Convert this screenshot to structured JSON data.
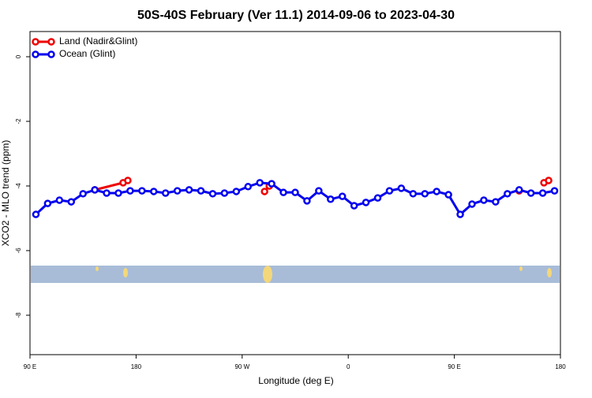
{
  "chart_data": {
    "type": "line",
    "title": "50S-40S February (Ver 11.1)   2014-09-06 to 2023-04-30",
    "xlabel": "Longitude (deg E)",
    "ylabel": "XCO2 - MLO trend (ppm)",
    "xlim": [
      90,
      540
    ],
    "ylim": [
      -9.22,
      0.78
    ],
    "xticks": [
      {
        "value": 90,
        "label": "90 E"
      },
      180,
      {
        "value": 270,
        "label": "90 W"
      },
      {
        "value": 360,
        "label": "0"
      },
      {
        "value": 450,
        "label": "90 E"
      },
      {
        "value": 540,
        "label": "180"
      }
    ],
    "yticks": [
      0,
      -2,
      -4,
      -6,
      -8
    ],
    "legend": "top-left",
    "series": [
      {
        "name": "Land (Nadir&Glint)",
        "color": "#ee0000",
        "x": [
          145,
          169,
          173,
          180,
          289,
          293,
          300,
          505,
          510,
          526,
          530
        ],
        "values": [
          -4.12,
          -3.9,
          -3.83,
          null,
          -4.17,
          -4.0,
          null,
          -4.15,
          null,
          -3.9,
          -3.83
        ]
      },
      {
        "name": "Ocean (Glint)",
        "color": "#0000ee",
        "x": [
          95,
          105,
          115,
          125,
          135,
          145,
          155,
          165,
          175,
          185,
          195,
          205,
          215,
          225,
          235,
          245,
          255,
          265,
          275,
          285,
          295,
          305,
          315,
          325,
          335,
          345,
          355,
          365,
          375,
          385,
          395,
          405,
          415,
          425,
          435,
          445,
          455,
          465,
          475,
          485,
          495,
          505,
          515,
          525,
          535
        ],
        "values": [
          -4.88,
          -4.54,
          -4.44,
          -4.49,
          -4.24,
          -4.12,
          -4.22,
          -4.22,
          -4.15,
          -4.15,
          -4.17,
          -4.22,
          -4.15,
          -4.12,
          -4.15,
          -4.24,
          -4.22,
          -4.17,
          -4.02,
          -3.9,
          -3.93,
          -4.2,
          -4.2,
          -4.46,
          -4.15,
          -4.41,
          -4.32,
          -4.61,
          -4.51,
          -4.37,
          -4.15,
          -4.07,
          -4.24,
          -4.24,
          -4.17,
          -4.27,
          -4.88,
          -4.56,
          -4.44,
          -4.49,
          -4.24,
          -4.12,
          -4.22,
          -4.22,
          -4.15
        ]
      }
    ]
  }
}
